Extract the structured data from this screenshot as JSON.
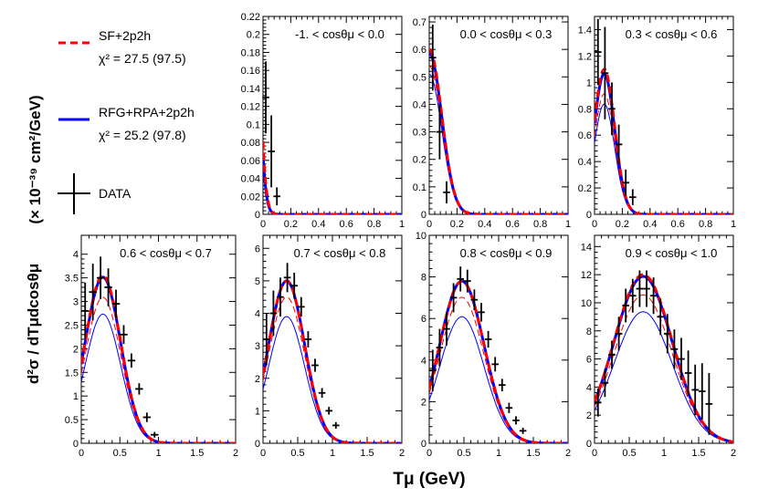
{
  "legend": {
    "sf_label": "SF+2p2h",
    "sf_chi2": "χ² = 27.5 (97.5)",
    "rfg_label": "RFG+RPA+2p2h",
    "rfg_chi2": "χ² = 25.2 (97.8)",
    "data_label": "DATA"
  },
  "axes": {
    "xlabel": "Tμ (GeV)",
    "ylabel_frac": "d²σ / dTμdcosθμ",
    "ylabel_units": "(× 10⁻³⁹ cm²/GeV)"
  },
  "colors": {
    "sf": "#ff0000",
    "rfg": "#0000ff",
    "data": "#000000"
  },
  "chart_data": [
    {
      "type": "line",
      "title": "-1. < cosθμ < 0.0",
      "xlim": [
        0,
        1
      ],
      "ylim": [
        0,
        0.22
      ],
      "xticks": [
        0,
        0.2,
        0.4,
        0.6,
        0.8,
        1
      ],
      "yticks": [
        0,
        0.02,
        0.04,
        0.06,
        0.08,
        0.1,
        0.12,
        0.14,
        0.16,
        0.18,
        0.2,
        0.22
      ],
      "model": {
        "A": 0.6,
        "mu": -0.1,
        "sigma": 0.05
      },
      "scale": {
        "sf": 1.0,
        "rfg": 0.82,
        "sfthin": 0.9,
        "rfgthin": 0.72
      },
      "data_points": [
        [
          0.02,
          0.13,
          0.04
        ],
        [
          0.06,
          0.07,
          0.04
        ],
        [
          0.1,
          0.02,
          0.01
        ]
      ]
    },
    {
      "type": "line",
      "title": "0.0 < cosθμ < 0.3",
      "xlim": [
        0,
        1
      ],
      "ylim": [
        0,
        0.72
      ],
      "xticks": [
        0,
        0.2,
        0.4,
        0.6,
        0.8,
        1
      ],
      "yticks": [
        0,
        0.1,
        0.2,
        0.3,
        0.4,
        0.5,
        0.6,
        0.7
      ],
      "model": {
        "A": 0.6,
        "mu": 0.0,
        "sigma": 0.09
      },
      "scale": {
        "sf": 1.0,
        "rfg": 0.98,
        "sfthin": 0.9,
        "rfgthin": 0.85
      },
      "data_points": [
        [
          0.025,
          0.57,
          0.12
        ],
        [
          0.075,
          0.3,
          0.1
        ],
        [
          0.125,
          0.08,
          0.04
        ]
      ]
    },
    {
      "type": "line",
      "title": "0.3 < cosθμ < 0.6",
      "xlim": [
        0,
        1
      ],
      "ylim": [
        0,
        1.5
      ],
      "xticks": [
        0,
        0.2,
        0.4,
        0.6,
        0.8,
        1
      ],
      "yticks": [
        0,
        0.2,
        0.4,
        0.6,
        0.8,
        1,
        1.2,
        1.4
      ],
      "model": {
        "A": 1.1,
        "mu": 0.07,
        "sigma": 0.075
      },
      "scale": {
        "sf": 1.0,
        "rfg": 0.97,
        "sfthin": 0.83,
        "rfgthin": 0.76
      },
      "data_points": [
        [
          0.025,
          1.23,
          0.25
        ],
        [
          0.075,
          1.07,
          0.35
        ],
        [
          0.125,
          0.8,
          0.2
        ],
        [
          0.175,
          0.53,
          0.15
        ],
        [
          0.225,
          0.24,
          0.1
        ],
        [
          0.275,
          0.13,
          0.06
        ]
      ]
    },
    {
      "type": "line",
      "title": "0.6 < cosθμ < 0.7",
      "xlim": [
        0,
        2
      ],
      "ylim": [
        0,
        4.4
      ],
      "xticks": [
        0,
        0.5,
        1,
        1.5,
        2
      ],
      "yticks": [
        0,
        0.5,
        1,
        1.5,
        2,
        2.5,
        3,
        3.5,
        4
      ],
      "model": {
        "A": 3.55,
        "mu": 0.28,
        "sigma": 0.23
      },
      "scale": {
        "sf": 1.0,
        "rfg": 0.99,
        "sfthin": 0.87,
        "rfgthin": 0.77
      },
      "data_points": [
        [
          0.05,
          2.8,
          0.6
        ],
        [
          0.15,
          3.2,
          0.6
        ],
        [
          0.25,
          3.5,
          0.45
        ],
        [
          0.35,
          3.3,
          0.4
        ],
        [
          0.45,
          2.95,
          0.3
        ],
        [
          0.55,
          2.3,
          0.2
        ],
        [
          0.65,
          1.75,
          0.15
        ],
        [
          0.75,
          1.15,
          0.12
        ],
        [
          0.85,
          0.55,
          0.1
        ],
        [
          0.95,
          0.18,
          0.06
        ]
      ]
    },
    {
      "type": "line",
      "title": "0.7 < cosθμ < 0.8",
      "xlim": [
        0,
        2
      ],
      "ylim": [
        0,
        6.4
      ],
      "xticks": [
        0,
        0.5,
        1,
        1.5,
        2
      ],
      "yticks": [
        0,
        1,
        2,
        3,
        4,
        5,
        6
      ],
      "model": {
        "A": 5.0,
        "mu": 0.34,
        "sigma": 0.26
      },
      "scale": {
        "sf": 1.0,
        "rfg": 1.0,
        "sfthin": 0.9,
        "rfgthin": 0.78
      },
      "data_points": [
        [
          0.05,
          3.2,
          0.8
        ],
        [
          0.15,
          4.0,
          0.7
        ],
        [
          0.25,
          4.5,
          0.6
        ],
        [
          0.35,
          5.1,
          0.45
        ],
        [
          0.45,
          4.85,
          0.4
        ],
        [
          0.55,
          4.2,
          0.3
        ],
        [
          0.65,
          3.2,
          0.25
        ],
        [
          0.75,
          2.4,
          0.2
        ],
        [
          0.85,
          1.55,
          0.15
        ],
        [
          0.95,
          1.0,
          0.12
        ],
        [
          1.05,
          0.55,
          0.1
        ]
      ]
    },
    {
      "type": "line",
      "title": "0.8 < cosθμ < 0.9",
      "xlim": [
        0,
        2
      ],
      "ylim": [
        0,
        10
      ],
      "xticks": [
        0,
        0.5,
        1,
        1.5,
        2
      ],
      "yticks": [
        0,
        2,
        4,
        6,
        8,
        10
      ],
      "model": {
        "A": 7.8,
        "mu": 0.47,
        "sigma": 0.32
      },
      "scale": {
        "sf": 1.0,
        "rfg": 1.0,
        "sfthin": 0.9,
        "rfgthin": 0.78
      },
      "data_points": [
        [
          0.05,
          3.5,
          1.0
        ],
        [
          0.15,
          4.6,
          0.9
        ],
        [
          0.25,
          5.5,
          0.8
        ],
        [
          0.35,
          7.0,
          0.7
        ],
        [
          0.45,
          7.9,
          0.6
        ],
        [
          0.55,
          7.8,
          0.55
        ],
        [
          0.65,
          6.9,
          0.5
        ],
        [
          0.75,
          6.3,
          0.45
        ],
        [
          0.85,
          5.0,
          0.4
        ],
        [
          0.95,
          3.8,
          0.35
        ],
        [
          1.05,
          2.8,
          0.3
        ],
        [
          1.15,
          1.7,
          0.25
        ],
        [
          1.25,
          1.1,
          0.2
        ],
        [
          1.35,
          0.6,
          0.15
        ]
      ]
    },
    {
      "type": "line",
      "title": "0.9 < cosθμ < 1.0",
      "xlim": [
        0,
        2
      ],
      "ylim": [
        0,
        14.8
      ],
      "xticks": [
        0,
        0.5,
        1,
        1.5,
        2
      ],
      "yticks": [
        0,
        2,
        4,
        6,
        8,
        10,
        12,
        14
      ],
      "model": {
        "A": 12.0,
        "mu": 0.7,
        "sigma": 0.42
      },
      "scale": {
        "sf": 1.0,
        "rfg": 0.99,
        "sfthin": 0.88,
        "rfgthin": 0.78
      },
      "data_points": [
        [
          0.05,
          2.9,
          1.0
        ],
        [
          0.15,
          4.3,
          1.0
        ],
        [
          0.25,
          6.3,
          1.0
        ],
        [
          0.35,
          7.8,
          1.2
        ],
        [
          0.45,
          9.8,
          1.2
        ],
        [
          0.55,
          10.5,
          1.2
        ],
        [
          0.65,
          11.0,
          1.3
        ],
        [
          0.75,
          11.0,
          1.3
        ],
        [
          0.85,
          10.5,
          1.3
        ],
        [
          0.95,
          9.0,
          1.3
        ],
        [
          1.05,
          7.8,
          1.4
        ],
        [
          1.15,
          6.7,
          1.4
        ],
        [
          1.25,
          6.0,
          1.5
        ],
        [
          1.35,
          5.0,
          1.6
        ],
        [
          1.45,
          3.8,
          1.8
        ],
        [
          1.55,
          3.7,
          2.0
        ],
        [
          1.65,
          2.8,
          2.2
        ]
      ]
    }
  ]
}
